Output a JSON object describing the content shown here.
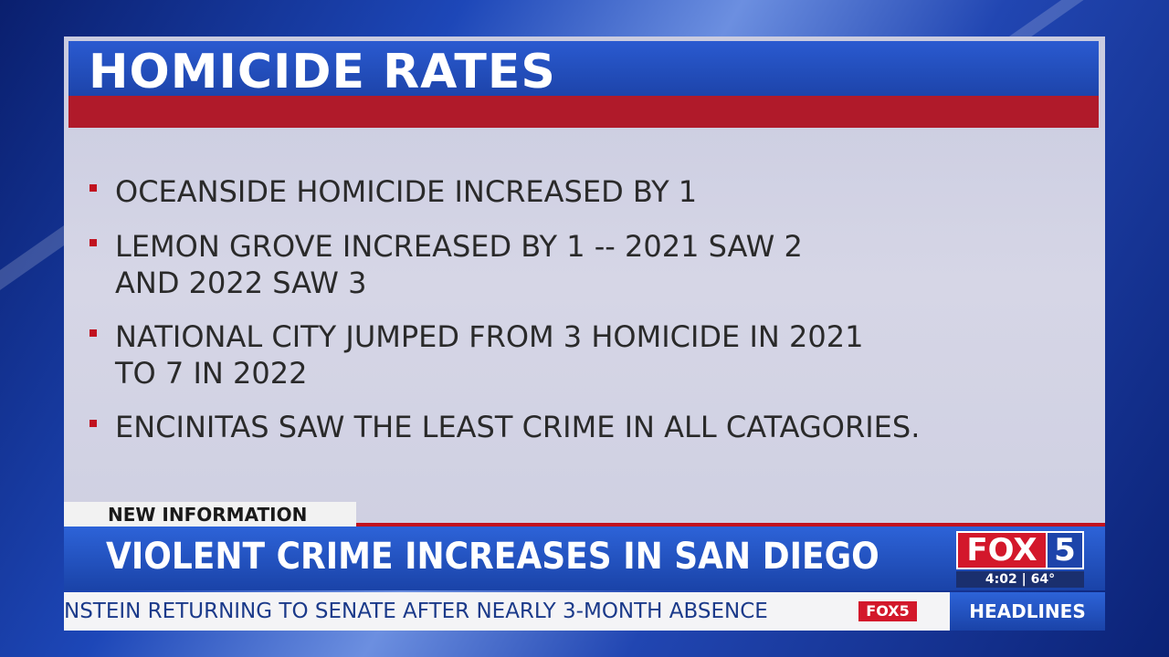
{
  "panel": {
    "title": "HOMICIDE RATES",
    "bullets": [
      {
        "lines": [
          "OCEANSIDE HOMICIDE INCREASED BY 1"
        ]
      },
      {
        "lines": [
          "LEMON GROVE INCREASED BY 1  -- 2021 SAW 2",
          "AND 2022 SAW 3"
        ]
      },
      {
        "lines": [
          "NATIONAL CITY JUMPED FROM 3 HOMICIDE IN 2021",
          "TO 7 IN 2022"
        ]
      },
      {
        "lines": [
          "ENCINITAS SAW THE LEAST CRIME IN ALL CATAGORIES."
        ]
      }
    ]
  },
  "lower_third": {
    "tag": "NEW INFORMATION",
    "headline": "VIOLENT CRIME INCREASES IN SAN DIEGO",
    "logo": {
      "network": "FOX",
      "channel": "5"
    },
    "time": "4:02",
    "temperature": "64°"
  },
  "ticker": {
    "text": "NSTEIN RETURNING TO SENATE AFTER NEARLY 3-MONTH ABSENCE",
    "logo": "FOX5",
    "section": "HEADLINES"
  }
}
